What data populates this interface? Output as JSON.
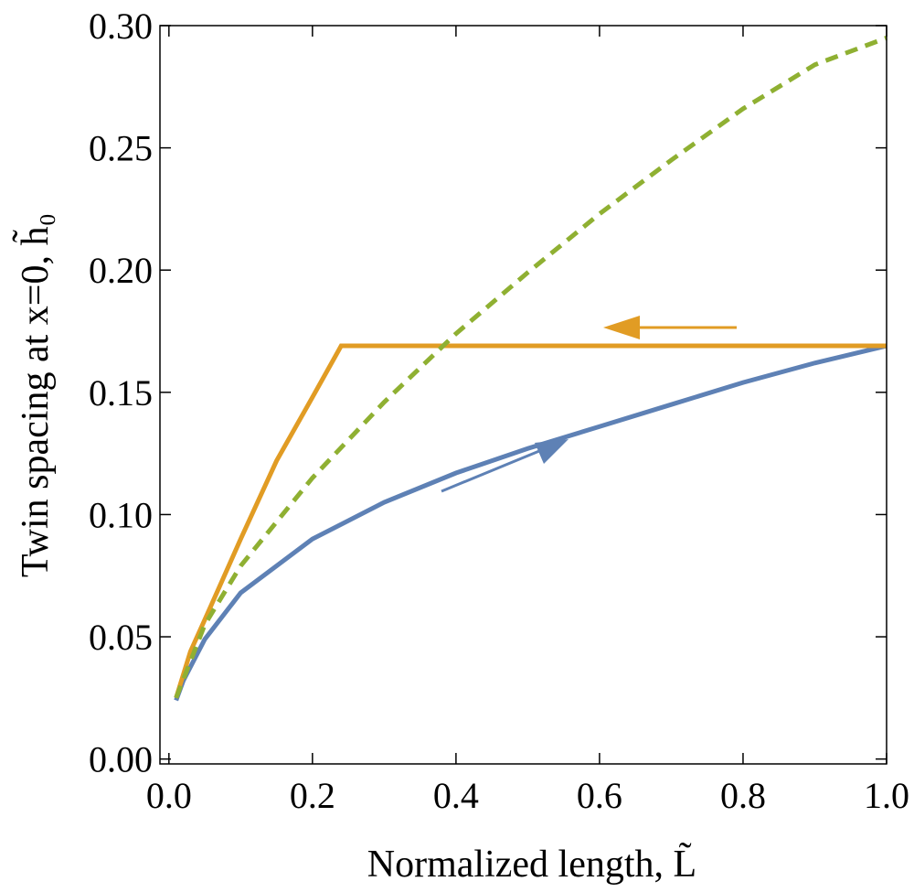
{
  "chart_data": {
    "type": "line",
    "xlabel": "Normalized length, L̃",
    "ylabel": "Twin spacing at x=0, h̃₀",
    "xlim": [
      -0.0125,
      1.0
    ],
    "ylim": [
      -0.002,
      0.3
    ],
    "xticks": [
      {
        "value": 0,
        "label": "0.0"
      },
      0.2,
      0.4,
      0.6,
      0.8,
      {
        "value": 1,
        "label": "1.0"
      }
    ],
    "yticks": [
      {
        "value": 0,
        "label": "0.00"
      },
      0.05,
      {
        "value": 0.1,
        "label": "0.10"
      },
      0.15,
      {
        "value": 0.2,
        "label": "0.20"
      },
      0.25,
      {
        "value": 0.3,
        "label": "0.30"
      }
    ],
    "series": [
      {
        "color": "#5e81b5",
        "dash": false,
        "x": [
          0.01,
          0.02,
          0.05,
          0.1,
          0.2,
          0.3,
          0.4,
          0.5,
          0.6,
          0.7,
          0.8,
          0.9,
          1.0
        ],
        "values": [
          0.024,
          0.032,
          0.049,
          0.068,
          0.09,
          0.105,
          0.117,
          0.127,
          0.136,
          0.145,
          0.154,
          0.162,
          0.169
        ]
      },
      {
        "color": "#e19c24",
        "dash": false,
        "x": [
          0.01,
          0.03,
          0.05,
          0.1,
          0.15,
          0.2,
          0.24,
          1.0
        ],
        "values": [
          0.025,
          0.044,
          0.057,
          0.09,
          0.122,
          0.148,
          0.169,
          0.169
        ]
      },
      {
        "color": "#8fb032",
        "dash": true,
        "x": [
          0.01,
          0.05,
          0.1,
          0.2,
          0.3,
          0.4,
          0.5,
          0.6,
          0.7,
          0.8,
          0.9,
          1.0
        ],
        "values": [
          0.025,
          0.055,
          0.079,
          0.115,
          0.146,
          0.174,
          0.199,
          0.223,
          0.245,
          0.266,
          0.284,
          0.295
        ]
      }
    ]
  }
}
